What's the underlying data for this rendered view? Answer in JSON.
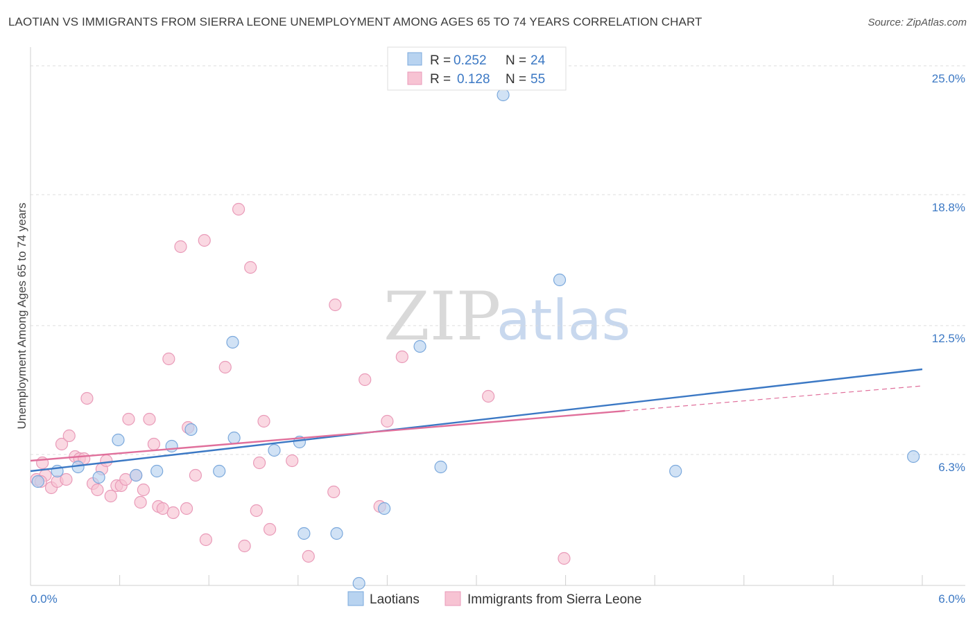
{
  "title": "LAOTIAN VS IMMIGRANTS FROM SIERRA LEONE UNEMPLOYMENT AMONG AGES 65 TO 74 YEARS CORRELATION CHART",
  "source": "Source: ZipAtlas.com",
  "watermark": {
    "zip": "ZIP",
    "atlas": "atlas"
  },
  "colors": {
    "blue": "#3b78c4",
    "blue_fill": "#b8d3f0",
    "pink": "#e06f9b",
    "pink_fill": "#f7c3d3"
  },
  "legend": {
    "r_label": "R =",
    "n_label": "N =",
    "entries": [
      {
        "r": "0.252",
        "n": "24"
      },
      {
        "r": "0.128",
        "n": "55"
      }
    ]
  },
  "chart_data": {
    "type": "scatter",
    "title": "LAOTIAN VS IMMIGRANTS FROM SIERRA LEONE UNEMPLOYMENT AMONG AGES 65 TO 74 YEARS CORRELATION CHART",
    "xlabel": "",
    "ylabel": "Unemployment Among Ages 65 to 74 years",
    "xlim": [
      0,
      6
    ],
    "ylim": [
      0,
      25.5
    ],
    "x_tick_labels": [
      "0.0%",
      "6.0%"
    ],
    "y_ticks": [
      6.3,
      12.5,
      18.8,
      25.0
    ],
    "y_tick_labels": [
      "6.3%",
      "12.5%",
      "18.8%",
      "25.0%"
    ],
    "series": [
      {
        "name": "Laotians",
        "color": "blue",
        "trend": {
          "x0": 0,
          "y0": 5.5,
          "x1": 6,
          "y1": 10.4,
          "dash_from": null
        },
        "points": [
          {
            "x": 0.05,
            "y": 5.0
          },
          {
            "x": 0.18,
            "y": 5.5
          },
          {
            "x": 0.32,
            "y": 5.7
          },
          {
            "x": 0.46,
            "y": 5.2
          },
          {
            "x": 0.59,
            "y": 7.0
          },
          {
            "x": 0.71,
            "y": 5.3
          },
          {
            "x": 0.85,
            "y": 5.5
          },
          {
            "x": 0.95,
            "y": 6.7
          },
          {
            "x": 1.08,
            "y": 7.5
          },
          {
            "x": 1.27,
            "y": 5.5
          },
          {
            "x": 1.36,
            "y": 11.7
          },
          {
            "x": 1.37,
            "y": 7.1
          },
          {
            "x": 1.64,
            "y": 6.5
          },
          {
            "x": 1.81,
            "y": 6.9
          },
          {
            "x": 1.84,
            "y": 2.5
          },
          {
            "x": 2.06,
            "y": 2.5
          },
          {
            "x": 2.21,
            "y": 0.1
          },
          {
            "x": 2.38,
            "y": 3.7
          },
          {
            "x": 2.62,
            "y": 11.5
          },
          {
            "x": 2.76,
            "y": 5.7
          },
          {
            "x": 3.18,
            "y": 23.6
          },
          {
            "x": 3.56,
            "y": 14.7
          },
          {
            "x": 4.34,
            "y": 5.5
          },
          {
            "x": 5.94,
            "y": 6.2
          }
        ]
      },
      {
        "name": "Immigrants from Sierra Leone",
        "color": "pink",
        "trend": {
          "x0": 0,
          "y0": 6.0,
          "x1": 6,
          "y1": 9.6,
          "dash_from": 4.0
        },
        "points": [
          {
            "x": 0.04,
            "y": 5.1
          },
          {
            "x": 0.08,
            "y": 5.9
          },
          {
            "x": 0.1,
            "y": 5.3
          },
          {
            "x": 0.14,
            "y": 4.7
          },
          {
            "x": 0.18,
            "y": 5.0
          },
          {
            "x": 0.21,
            "y": 6.8
          },
          {
            "x": 0.24,
            "y": 5.1
          },
          {
            "x": 0.26,
            "y": 7.2
          },
          {
            "x": 0.3,
            "y": 6.2
          },
          {
            "x": 0.33,
            "y": 6.1
          },
          {
            "x": 0.36,
            "y": 6.1
          },
          {
            "x": 0.38,
            "y": 9.0
          },
          {
            "x": 0.42,
            "y": 4.9
          },
          {
            "x": 0.45,
            "y": 4.6
          },
          {
            "x": 0.48,
            "y": 5.6
          },
          {
            "x": 0.51,
            "y": 6.0
          },
          {
            "x": 0.54,
            "y": 4.3
          },
          {
            "x": 0.58,
            "y": 4.8
          },
          {
            "x": 0.61,
            "y": 4.8
          },
          {
            "x": 0.64,
            "y": 5.1
          },
          {
            "x": 0.66,
            "y": 8.0
          },
          {
            "x": 0.71,
            "y": 5.3
          },
          {
            "x": 0.74,
            "y": 4.0
          },
          {
            "x": 0.76,
            "y": 4.6
          },
          {
            "x": 0.8,
            "y": 8.0
          },
          {
            "x": 0.83,
            "y": 6.8
          },
          {
            "x": 0.86,
            "y": 3.8
          },
          {
            "x": 0.89,
            "y": 3.7
          },
          {
            "x": 0.93,
            "y": 10.9
          },
          {
            "x": 0.96,
            "y": 3.5
          },
          {
            "x": 1.01,
            "y": 16.3
          },
          {
            "x": 1.05,
            "y": 3.7
          },
          {
            "x": 1.06,
            "y": 7.6
          },
          {
            "x": 1.11,
            "y": 5.3
          },
          {
            "x": 1.17,
            "y": 16.6
          },
          {
            "x": 1.18,
            "y": 2.2
          },
          {
            "x": 1.31,
            "y": 10.5
          },
          {
            "x": 1.4,
            "y": 18.1
          },
          {
            "x": 1.44,
            "y": 1.9
          },
          {
            "x": 1.48,
            "y": 15.3
          },
          {
            "x": 1.52,
            "y": 3.6
          },
          {
            "x": 1.54,
            "y": 5.9
          },
          {
            "x": 1.57,
            "y": 7.9
          },
          {
            "x": 1.61,
            "y": 2.7
          },
          {
            "x": 1.76,
            "y": 6.0
          },
          {
            "x": 1.87,
            "y": 1.4
          },
          {
            "x": 2.04,
            "y": 4.5
          },
          {
            "x": 2.05,
            "y": 13.5
          },
          {
            "x": 2.25,
            "y": 9.9
          },
          {
            "x": 2.35,
            "y": 3.8
          },
          {
            "x": 2.4,
            "y": 7.9
          },
          {
            "x": 2.5,
            "y": 11.0
          },
          {
            "x": 3.08,
            "y": 9.1
          },
          {
            "x": 3.59,
            "y": 1.3
          },
          {
            "x": 0.07,
            "y": 5.0
          }
        ]
      }
    ]
  },
  "bottom_legend": [
    "Laotians",
    "Immigrants from Sierra Leone"
  ]
}
